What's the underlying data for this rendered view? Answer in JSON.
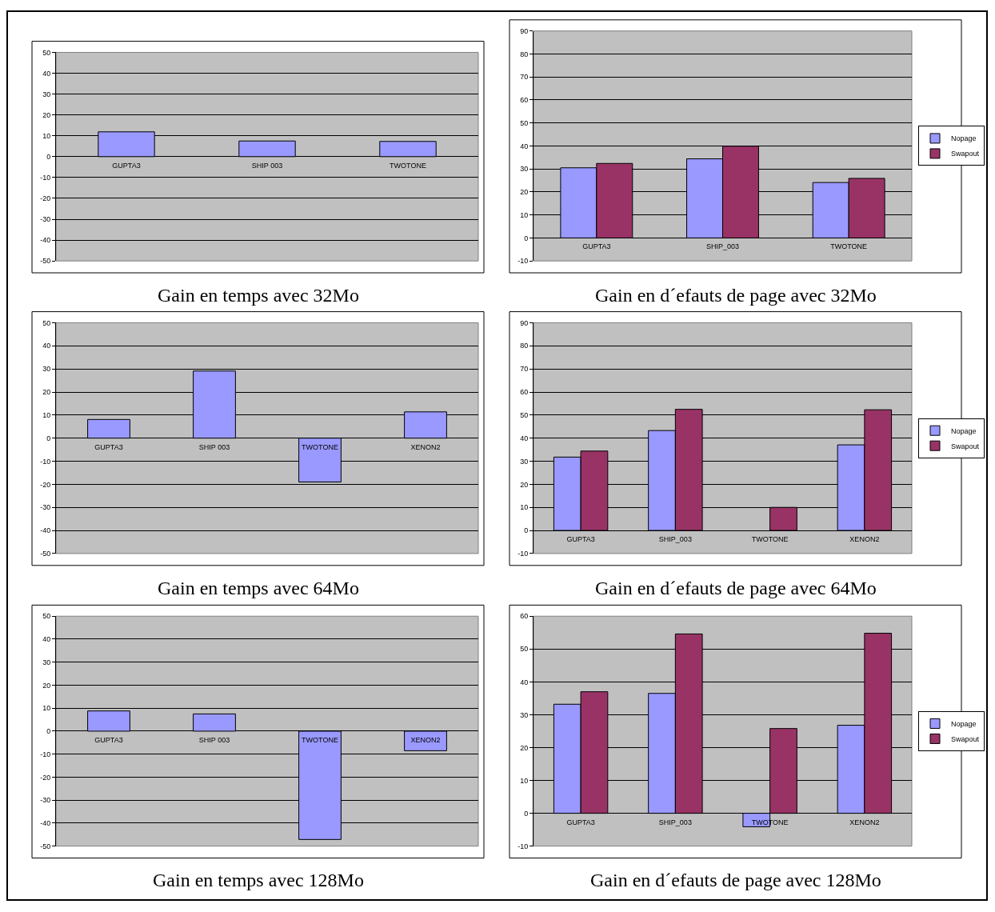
{
  "chart_data": [
    {
      "type": "bar",
      "title": "Gain en temps avec 32Mo",
      "categories": [
        "GUPTA3",
        "SHIP 003",
        "TWOTONE"
      ],
      "color": "#9999ff",
      "values": [
        11.9,
        7.5,
        7.3
      ],
      "ylim": [
        -50,
        50
      ],
      "yticks": [
        -50,
        -40,
        -30,
        -20,
        -10,
        0,
        10,
        20,
        30,
        40,
        50
      ],
      "grid": "y"
    },
    {
      "type": "bar",
      "title": "Gain en d´efauts de page avec 32Mo",
      "categories": [
        "GUPTA3",
        "SHIP_003",
        "TWOTONE"
      ],
      "series": [
        {
          "name": "Nopage",
          "color": "#9999ff",
          "values": [
            30.5,
            34.4,
            24.1
          ]
        },
        {
          "name": "Swapout",
          "color": "#993366",
          "values": [
            32.4,
            39.9,
            25.9
          ]
        }
      ],
      "ylim": [
        -10,
        90
      ],
      "yticks": [
        -10,
        0,
        10,
        20,
        30,
        40,
        50,
        60,
        70,
        80,
        90
      ],
      "grid": "y",
      "legend": "right"
    },
    {
      "type": "bar",
      "title": "Gain en temps avec 64Mo",
      "categories": [
        "GUPTA3",
        "SHIP 003",
        "TWOTONE",
        "XENON2"
      ],
      "color": "#9999ff",
      "values": [
        8.1,
        29.1,
        -19,
        11.4
      ],
      "ylim": [
        -50,
        50
      ],
      "yticks": [
        -50,
        -40,
        -30,
        -20,
        -10,
        0,
        10,
        20,
        30,
        40,
        50
      ],
      "grid": "y"
    },
    {
      "type": "bar",
      "title": "Gain en d´efauts de page avec 64Mo",
      "categories": [
        "GUPTA3",
        "SHIP_003",
        "TWOTONE",
        "XENON2"
      ],
      "series": [
        {
          "name": "Nopage",
          "color": "#9999ff",
          "values": [
            31.8,
            43.3,
            null,
            37.1
          ]
        },
        {
          "name": "Swapout",
          "color": "#993366",
          "values": [
            34.4,
            52.5,
            10,
            52.3
          ]
        }
      ],
      "ylim": [
        -10,
        90
      ],
      "yticks": [
        -10,
        0,
        10,
        20,
        30,
        40,
        50,
        60,
        70,
        80,
        90
      ],
      "grid": "y",
      "legend": "right"
    },
    {
      "type": "bar",
      "title": "Gain en temps avec 128Mo",
      "categories": [
        "GUPTA3",
        "SHIP 003",
        "TWOTONE",
        "XENON2"
      ],
      "color": "#9999ff",
      "values": [
        8.8,
        7.5,
        -47.1,
        -8.5
      ],
      "ylim": [
        -50,
        50
      ],
      "yticks": [
        -50,
        -40,
        -30,
        -20,
        -10,
        0,
        10,
        20,
        30,
        40,
        50
      ],
      "grid": "y"
    },
    {
      "type": "bar",
      "title": "Gain en d´efauts de page avec 128Mo",
      "categories": [
        "GUPTA3",
        "SHIP_003",
        "TWOTONE",
        "XENON2"
      ],
      "series": [
        {
          "name": "Nopage",
          "color": "#9999ff",
          "values": [
            33.2,
            36.5,
            -4.1,
            26.8
          ]
        },
        {
          "name": "Swapout",
          "color": "#993366",
          "values": [
            37,
            54.6,
            25.8,
            54.8
          ]
        }
      ],
      "ylim": [
        -10,
        60
      ],
      "yticks": [
        -10,
        0,
        10,
        20,
        30,
        40,
        50,
        60
      ],
      "grid": "y",
      "legend": "right"
    }
  ]
}
